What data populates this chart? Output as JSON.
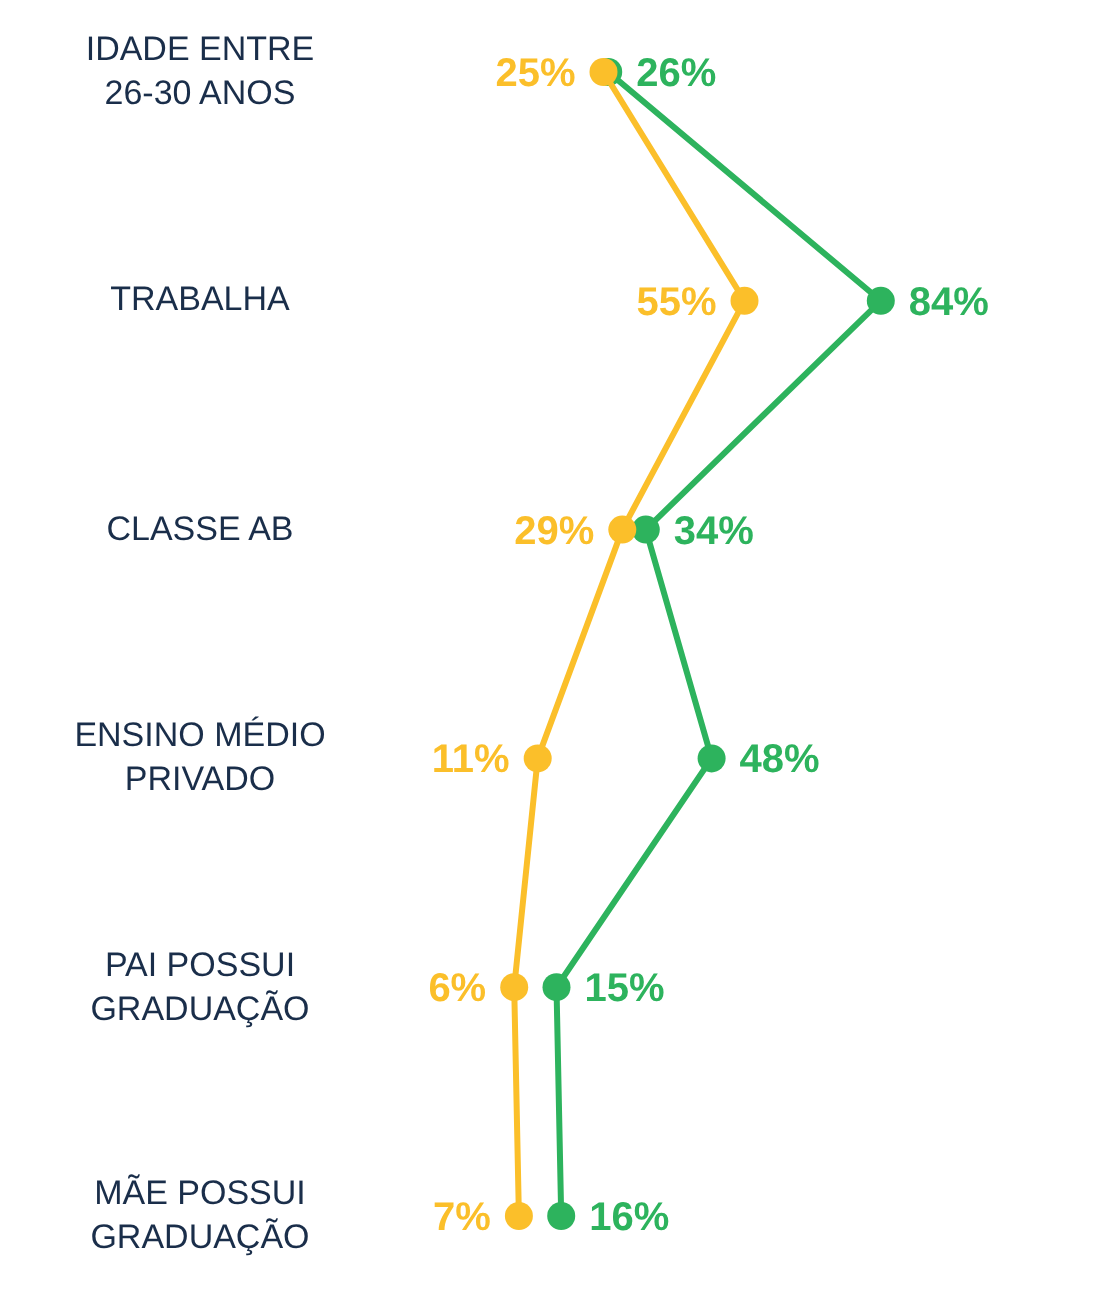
{
  "chart_data": {
    "type": "line",
    "orientation": "horizontal",
    "categories": [
      "IDADE ENTRE 26-30 ANOS",
      "TRABALHA",
      "CLASSE AB",
      "ENSINO MÉDIO PRIVADO",
      "PAI POSSUI GRADUAÇÃO",
      "MÃE POSSUI GRADUAÇÃO"
    ],
    "series": [
      {
        "color": "#2db35d",
        "values": [
          26,
          84,
          34,
          48,
          15,
          16
        ],
        "value_labels": [
          "26%",
          "84%",
          "34%",
          "48%",
          "15%",
          "16%"
        ]
      },
      {
        "color": "#fbbf2a",
        "values": [
          25,
          55,
          29,
          11,
          6,
          7
        ],
        "value_labels": [
          "25%",
          "55%",
          "29%",
          "11%",
          "6%",
          "7%"
        ]
      }
    ],
    "marker": "circle"
  }
}
